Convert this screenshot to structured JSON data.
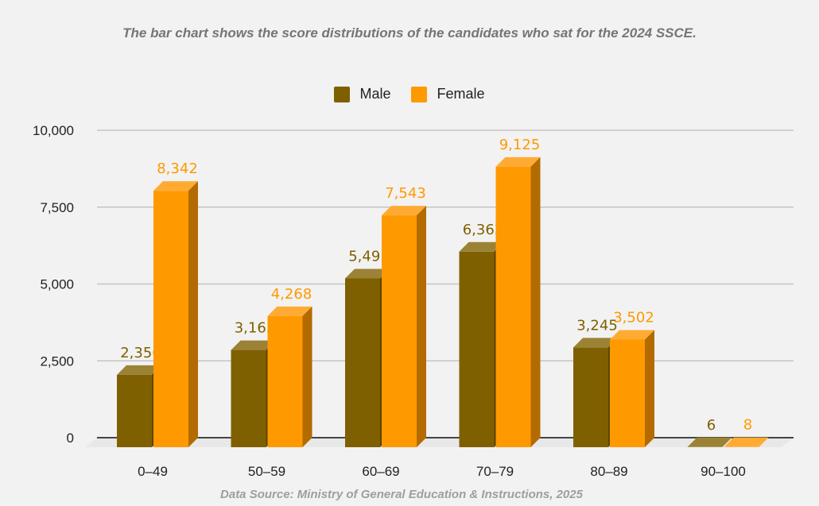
{
  "chart_data": {
    "type": "bar",
    "title": "",
    "subtitle": "The bar chart shows the score distributions of the candidates who sat for the 2024 SSCE.",
    "source": "Data Source: Ministry of General Education & Instructions, 2025",
    "xlabel": "",
    "ylabel": "",
    "categories": [
      "0–49",
      "50–59",
      "60–69",
      "70–79",
      "80–89",
      "90–100"
    ],
    "series": [
      {
        "name": "Male",
        "values": [
          2356,
          3163,
          5491,
          6362,
          3245,
          6
        ],
        "labels": [
          "2,356",
          "3,163",
          "5,491",
          "6,362",
          "3,245",
          "6"
        ],
        "color": "#7f6000",
        "top_color": "#9b8235",
        "side_color": "#5c4500",
        "label_color": "#7f6000"
      },
      {
        "name": "Female",
        "values": [
          8342,
          4268,
          7543,
          9125,
          3502,
          8
        ],
        "labels": [
          "8,342",
          "4,268",
          "7,543",
          "9,125",
          "3,502",
          "8"
        ],
        "color": "#ff9900",
        "top_color": "#ffab33",
        "side_color": "#b36b00",
        "label_color": "#ff9900"
      }
    ],
    "ylim": [
      0,
      10000
    ],
    "yticks": [
      0,
      2500,
      5000,
      7500,
      10000
    ],
    "ytick_labels": [
      "0",
      "2,500",
      "5,000",
      "7,500",
      "10,000"
    ],
    "grid": true,
    "legend_position": "top-center",
    "style": "3d"
  }
}
